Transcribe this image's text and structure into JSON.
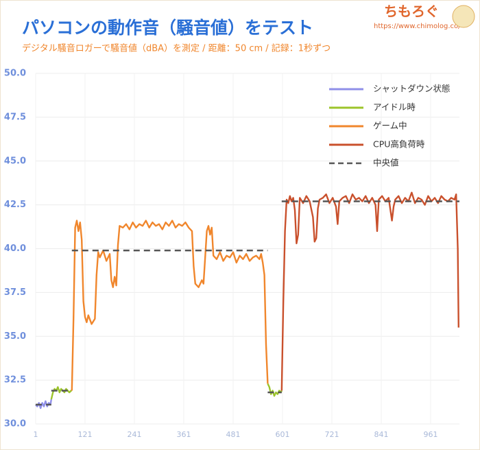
{
  "logo": {
    "name": "ちもろぐ",
    "url": "https://www.chimolog.co/"
  },
  "chart_data": {
    "type": "line",
    "title": "パソコンの動作音（騒音値）をテスト",
    "subtitle": "デジタル騒音ロガーで騒音値（dBA）を測定 / 距離：50 cm / 記録：1秒ずつ",
    "xlim": [
      1,
      1031
    ],
    "xticks": [
      1,
      121,
      241,
      361,
      481,
      601,
      721,
      841,
      961
    ],
    "ylim": [
      30,
      50
    ],
    "yticks": [
      {
        "value": 30,
        "label": "30.0"
      },
      32.5,
      {
        "value": 35,
        "label": "35.0"
      },
      37.5,
      {
        "value": 40,
        "label": "40.0"
      },
      42.5,
      {
        "value": 45,
        "label": "45.0"
      },
      47.5,
      {
        "value": 50,
        "label": "50.0"
      }
    ],
    "grid": true,
    "legend": "top-right",
    "series": [
      {
        "name": "シャットダウン状態",
        "color": "#8f8fe8",
        "x": [
          1,
          5,
          9,
          13,
          17,
          21,
          25,
          29,
          33,
          37,
          39
        ],
        "values": [
          31.1,
          31.0,
          31.2,
          30.9,
          31.2,
          31.0,
          31.3,
          31.0,
          31.2,
          31.1,
          31.4
        ]
      },
      {
        "name": "アイドル時",
        "color": "#9cc42a",
        "x": [
          39,
          43,
          47,
          51,
          55,
          59,
          63,
          67,
          71,
          75,
          79,
          83,
          87,
          89,
          300,
          565,
          569,
          573,
          577,
          581,
          585,
          589,
          593,
          597,
          599
        ],
        "values": [
          31.4,
          31.8,
          32.0,
          31.9,
          32.1,
          31.8,
          32.0,
          31.9,
          31.8,
          32.0,
          31.9,
          31.8,
          31.9,
          31.9,
          null,
          32.3,
          32.1,
          31.7,
          31.9,
          31.6,
          31.8,
          31.7,
          31.9,
          31.8,
          31.9
        ]
      },
      {
        "name": "ゲーム中",
        "color": "#f0862c",
        "x": [
          89,
          93,
          97,
          101,
          105,
          109,
          113,
          117,
          121,
          125,
          129,
          137,
          145,
          149,
          153,
          157,
          165,
          173,
          181,
          185,
          189,
          193,
          197,
          201,
          205,
          213,
          221,
          229,
          237,
          245,
          253,
          261,
          269,
          277,
          285,
          293,
          301,
          309,
          317,
          325,
          333,
          341,
          349,
          357,
          365,
          373,
          381,
          385,
          389,
          397,
          405,
          409,
          413,
          417,
          421,
          425,
          429,
          433,
          441,
          449,
          457,
          465,
          473,
          481,
          489,
          497,
          505,
          513,
          521,
          529,
          537,
          545,
          549,
          553,
          557,
          561,
          565
        ],
        "values": [
          31.9,
          36,
          41.2,
          41.6,
          41.0,
          41.5,
          40.5,
          37,
          36.1,
          35.8,
          36.2,
          35.7,
          36.0,
          38.5,
          39.8,
          39.5,
          39.9,
          39.3,
          39.7,
          38.2,
          37.8,
          38.4,
          37.9,
          40.2,
          41.3,
          41.2,
          41.4,
          41.1,
          41.5,
          41.2,
          41.4,
          41.3,
          41.6,
          41.2,
          41.5,
          41.3,
          41.4,
          41.1,
          41.5,
          41.3,
          41.6,
          41.2,
          41.4,
          41.3,
          41.5,
          41.2,
          41.0,
          39.0,
          38.0,
          37.8,
          38.2,
          38.0,
          39.5,
          41.0,
          41.3,
          40.8,
          41.2,
          39.6,
          39.4,
          39.8,
          39.3,
          39.6,
          39.5,
          39.8,
          39.2,
          39.6,
          39.4,
          39.7,
          39.3,
          39.5,
          39.6,
          39.4,
          39.7,
          39.2,
          38.5,
          34.5,
          32.3
        ]
      },
      {
        "name": "CPU高負荷時",
        "color": "#c9502c",
        "x": [
          599,
          603,
          607,
          611,
          615,
          619,
          623,
          627,
          631,
          635,
          639,
          643,
          651,
          659,
          667,
          675,
          679,
          683,
          687,
          691,
          699,
          707,
          715,
          723,
          731,
          735,
          739,
          747,
          755,
          763,
          771,
          779,
          787,
          795,
          803,
          811,
          819,
          827,
          831,
          835,
          843,
          851,
          859,
          867,
          871,
          875,
          883,
          891,
          899,
          907,
          915,
          923,
          931,
          939,
          947,
          955,
          963,
          971,
          979,
          987,
          995,
          1003,
          1011,
          1019,
          1023,
          1027,
          1029
        ],
        "values": [
          31.9,
          37,
          41,
          42.8,
          42.6,
          43.0,
          42.7,
          42.9,
          42.2,
          40.3,
          40.8,
          42.9,
          42.6,
          43.0,
          42.7,
          41.8,
          40.4,
          40.6,
          42.3,
          42.8,
          42.9,
          43.1,
          42.6,
          42.9,
          42.4,
          41.4,
          42.7,
          42.9,
          43.0,
          42.6,
          43.1,
          42.8,
          42.9,
          42.7,
          43.0,
          42.6,
          42.9,
          42.5,
          41.0,
          42.8,
          43.0,
          42.7,
          42.9,
          41.6,
          42.4,
          42.8,
          43.0,
          42.6,
          42.9,
          42.7,
          43.2,
          42.6,
          42.9,
          42.8,
          42.5,
          43.0,
          42.7,
          42.9,
          42.6,
          43.0,
          42.8,
          42.7,
          42.9,
          42.8,
          43.1,
          40,
          35.5
        ]
      },
      {
        "name": "中央値",
        "color": "#555555",
        "dashed": true,
        "x": [
          1,
          39,
          39,
          39,
          89,
          89,
          89,
          565,
          565,
          565,
          599,
          599,
          599,
          1031
        ],
        "values": [
          31.1,
          31.1,
          null,
          31.9,
          31.9,
          null,
          39.9,
          39.9,
          null,
          31.8,
          31.8,
          null,
          42.7,
          42.7
        ]
      }
    ]
  }
}
